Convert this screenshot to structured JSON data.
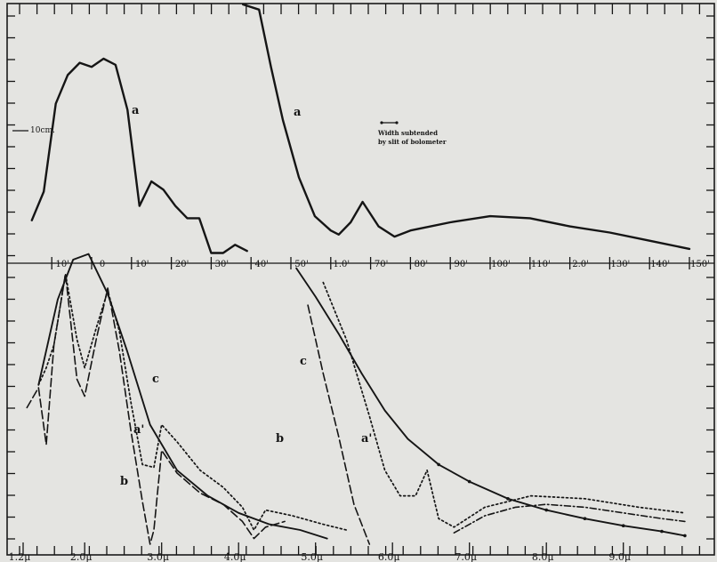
{
  "chart_data": {
    "type": "line",
    "title": "",
    "upper_panel": {
      "x_tick_labels": [
        "10'",
        "0",
        "10'",
        "20'",
        "30'",
        "40'",
        "50'",
        "1.0'",
        "70'",
        "80'",
        "90'",
        "100'",
        "110'",
        "2.0'",
        "130'",
        "140'",
        "150'"
      ],
      "scale_label": "10cm.",
      "annotation": "Width subtended by slit of bolometer",
      "series": [
        {
          "name": "a",
          "x": [
            -15,
            -12,
            -9,
            -6,
            -3,
            0,
            3,
            6,
            9,
            12,
            15,
            18,
            21,
            24,
            27,
            30,
            33,
            36,
            39
          ],
          "y": [
            21,
            35,
            78,
            92,
            98,
            96,
            100,
            97,
            75,
            28,
            40,
            36,
            28,
            22,
            22,
            5,
            5,
            9,
            6
          ]
        },
        {
          "name": "a",
          "x": [
            38,
            42,
            45,
            48,
            52,
            56,
            60,
            62,
            65,
            68,
            72,
            76,
            80,
            90,
            100,
            110,
            120,
            130,
            140,
            150
          ],
          "y": [
            150,
            124,
            96,
            70,
            42,
            23,
            16,
            14,
            20,
            30,
            18,
            13,
            16,
            20,
            23,
            22,
            18,
            15,
            11,
            7
          ]
        }
      ]
    },
    "lower_panel": {
      "x_tick_labels": [
        "1.2μ",
        "2.0μ",
        "3.0μ",
        "4.0μ",
        "5.0μ",
        "6.0μ",
        "7.0μ",
        "8.0μ",
        "9.0μ"
      ],
      "xlim": [
        1.2,
        9.8
      ],
      "series": [
        {
          "name": "c",
          "style": "solid",
          "x": [
            1.4,
            1.65,
            1.85,
            2.05,
            2.3,
            2.55,
            2.85,
            3.2,
            3.6,
            4.0,
            4.4,
            4.8,
            5.15
          ],
          "y": [
            56,
            86,
            100,
            102,
            88,
            68,
            42,
            26,
            17,
            11,
            7,
            5,
            2
          ]
        },
        {
          "name": "c",
          "style": "solid",
          "x": [
            4.75,
            5.0,
            5.3,
            5.6,
            5.9,
            6.2,
            6.6,
            7.0,
            7.5,
            8.0,
            8.5,
            9.0,
            9.5,
            9.8
          ],
          "y": [
            97,
            87,
            74,
            60,
            47,
            37,
            28,
            22,
            16,
            12,
            9,
            6.5,
            4.5,
            3
          ]
        },
        {
          "name": "a'",
          "style": "dotted",
          "x": [
            1.4,
            1.5,
            1.6,
            1.75,
            1.9,
            2.0,
            2.15,
            2.3,
            2.45,
            2.6,
            2.75,
            2.9,
            3.0,
            3.2,
            3.5,
            3.8,
            4.05,
            4.2,
            4.35,
            4.7,
            5.1,
            5.4
          ],
          "y": [
            56,
            62,
            70,
            95,
            72,
            62,
            76,
            89,
            75,
            50,
            28,
            27,
            42,
            36,
            26,
            20,
            13,
            5,
            12,
            10,
            7,
            5
          ]
        },
        {
          "name": "a'",
          "style": "dotted",
          "x": [
            5.1,
            5.4,
            5.7,
            5.9,
            6.1,
            6.3,
            6.45,
            6.6,
            6.8,
            7.2,
            7.8,
            8.5,
            9.2,
            9.8
          ],
          "y": [
            92,
            72,
            45,
            26,
            17,
            17,
            26,
            9,
            6,
            13,
            17,
            16,
            13,
            11
          ]
        },
        {
          "name": "b",
          "style": "dashed",
          "x": [
            1.25,
            1.4,
            1.5,
            1.6,
            1.75,
            1.9,
            2.0,
            2.15,
            2.3,
            2.45,
            2.6,
            2.75,
            2.85,
            2.9,
            3.0,
            3.2,
            3.5,
            3.8,
            4.05,
            4.2,
            4.35,
            4.6
          ],
          "y": [
            48,
            55,
            35,
            70,
            95,
            58,
            52,
            72,
            90,
            68,
            40,
            15,
            0,
            5,
            33,
            25,
            18,
            14,
            8,
            2,
            6,
            8
          ]
        },
        {
          "name": "b",
          "style": "dashed",
          "x": [
            4.9,
            5.1,
            5.3,
            5.5,
            5.7
          ],
          "y": [
            84,
            60,
            38,
            14,
            0
          ]
        },
        {
          "name": "",
          "style": "dash-dot",
          "x": [
            6.8,
            7.2,
            7.6,
            8.0,
            8.5,
            9.0,
            9.5,
            9.8
          ],
          "y": [
            4,
            10,
            13,
            14,
            13,
            11,
            9,
            8
          ]
        }
      ]
    }
  }
}
